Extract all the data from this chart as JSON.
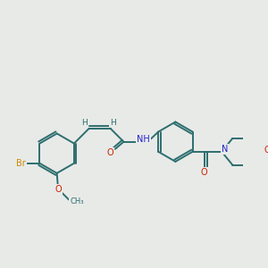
{
  "bg_color": "#e8eae8",
  "bond_color": "#2d6e6e",
  "bond_width": 1.4,
  "label_colors": {
    "H": "#2d6e6e",
    "O": "#cc2200",
    "N": "#2222cc",
    "Br": "#cc8800"
  },
  "font_size": 7.0,
  "fig_size": [
    3.0,
    3.0
  ],
  "dpi": 100
}
